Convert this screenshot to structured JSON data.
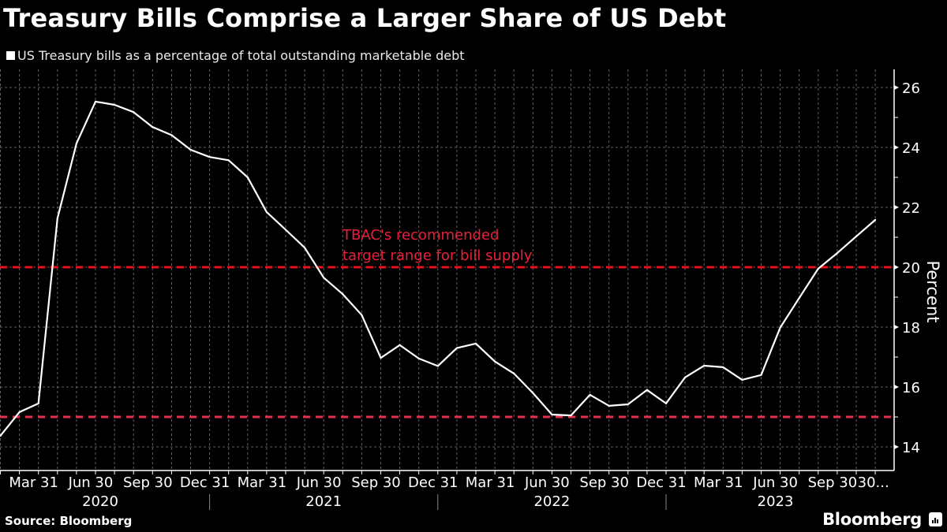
{
  "header": {
    "title": "Treasury Bills Comprise a Larger Share of US Debt",
    "legend_label": "US Treasury bills as a percentage of total outstanding marketable debt"
  },
  "footer": {
    "source": "Source: Bloomberg",
    "brand": "Bloomberg",
    "brand_icon": "bloomberg-chart-icon"
  },
  "colors": {
    "background": "#000000",
    "line": "#ffffff",
    "reference": "#e8203b",
    "grid": "#7a7a7a"
  },
  "chart_data": {
    "type": "line",
    "title": "Treasury Bills Comprise a Larger Share of US Debt",
    "ylabel": "Percent",
    "xlabel": "",
    "ylim": [
      13.2,
      26.6
    ],
    "yticks": [
      14,
      16,
      18,
      20,
      22,
      24,
      26
    ],
    "grid": true,
    "legend_position": "top-left",
    "series": [
      {
        "name": "US Treasury bills as a percentage of total outstanding marketable debt",
        "values": [
          14.37,
          15.16,
          15.45,
          21.63,
          24.13,
          25.53,
          25.42,
          25.18,
          24.68,
          24.41,
          23.92,
          23.68,
          23.57,
          23.0,
          21.84,
          21.25,
          20.65,
          19.65,
          19.1,
          18.4,
          16.97,
          17.4,
          16.95,
          16.7,
          17.3,
          17.45,
          16.85,
          16.45,
          15.8,
          15.08,
          15.05,
          15.74,
          15.37,
          15.42,
          15.9,
          15.45,
          16.32,
          16.71,
          16.66,
          16.24,
          16.4,
          17.98,
          18.97,
          19.95,
          20.47,
          21.03,
          21.58
        ]
      }
    ],
    "reference_lines": [
      {
        "value": 20,
        "label": "TBAC's recommended target range for bill supply (upper)"
      },
      {
        "value": 15,
        "label": "TBAC's recommended target range for bill supply (lower)"
      }
    ],
    "annotations": [
      {
        "line1": "TBAC's recommended",
        "line2": "target range for bill supply"
      }
    ],
    "x_tick_labels": [
      {
        "text": "Mar 31",
        "index": 1.75
      },
      {
        "text": "Jun 30",
        "index": 4.75
      },
      {
        "text": "Sep 30",
        "index": 7.75
      },
      {
        "text": "Dec 31",
        "index": 10.75
      },
      {
        "text": "Mar 31",
        "index": 13.75
      },
      {
        "text": "Jun 30",
        "index": 16.75
      },
      {
        "text": "Sep 30",
        "index": 19.75
      },
      {
        "text": "Dec 31",
        "index": 22.75
      },
      {
        "text": "Mar 31",
        "index": 25.75
      },
      {
        "text": "Jun 30",
        "index": 28.75
      },
      {
        "text": "Sep 30",
        "index": 31.75
      },
      {
        "text": "Dec 31",
        "index": 34.75
      },
      {
        "text": "Mar 31",
        "index": 37.75
      },
      {
        "text": "Jun 30",
        "index": 40.75
      },
      {
        "text": "Sep 30",
        "index": 43.75
      },
      {
        "text": "30...",
        "index": 45.9
      }
    ],
    "year_labels": [
      {
        "text": "2020",
        "from": -0.5,
        "to": 11
      },
      {
        "text": "2021",
        "from": 11,
        "to": 23
      },
      {
        "text": "2022",
        "from": 23,
        "to": 35
      },
      {
        "text": "2023",
        "from": 35,
        "to": 46.5
      }
    ],
    "year_separators": [
      11,
      23,
      35
    ]
  }
}
